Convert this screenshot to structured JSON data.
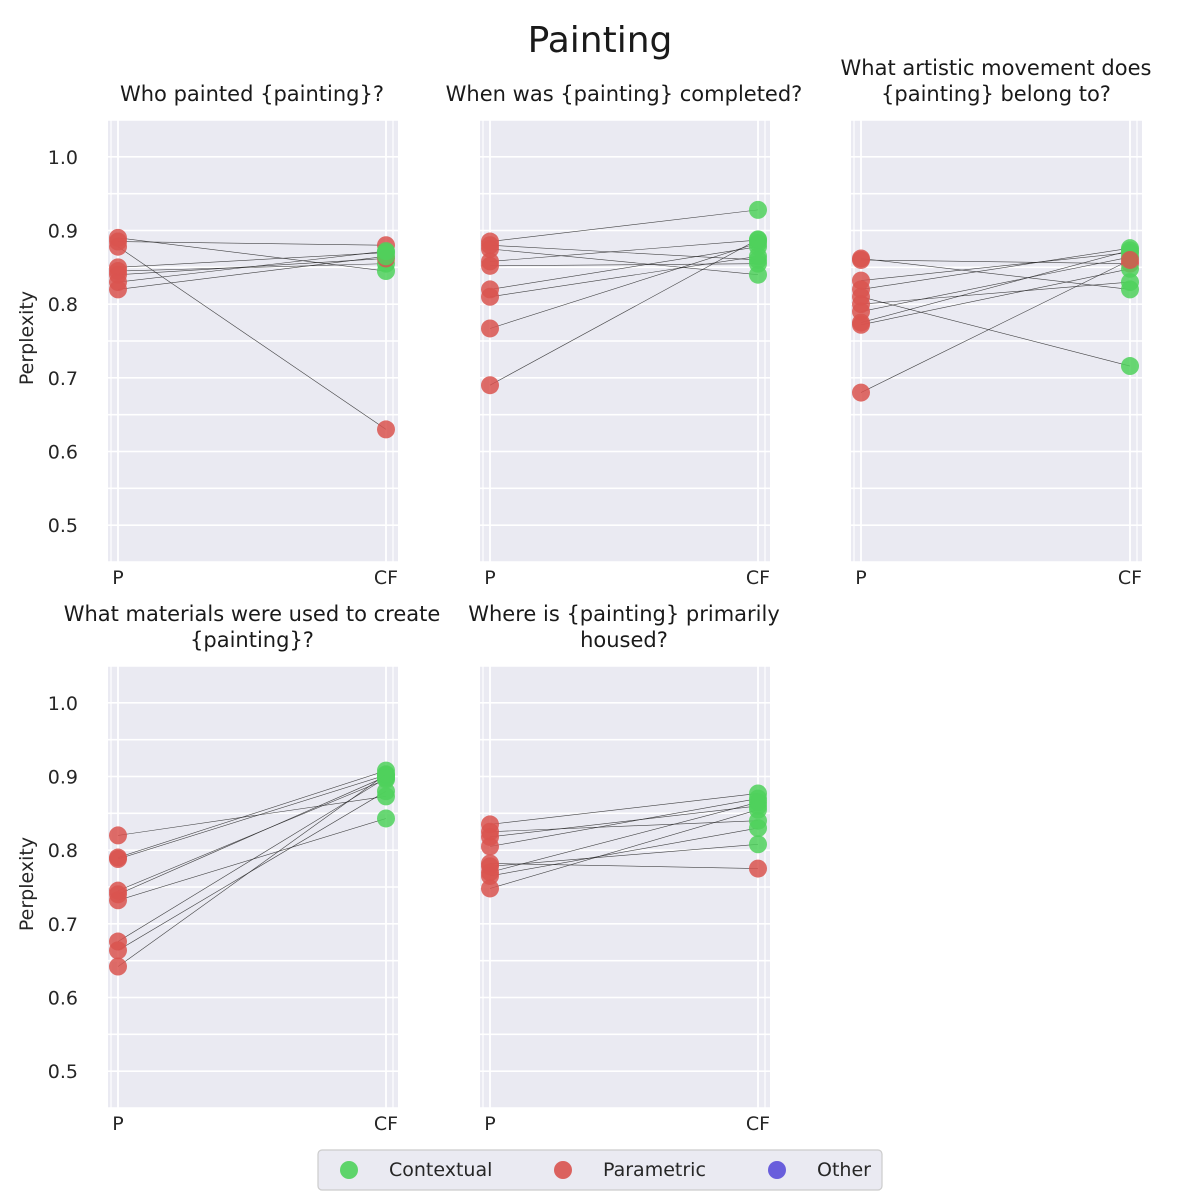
{
  "figure_title": "Painting",
  "colors": {
    "contextual": "#4fd15c",
    "parametric": "#d9534f",
    "other": "#5b4fd9",
    "panel_bg": "#eaeaf2",
    "grid": "#ffffff",
    "line": "#262626"
  },
  "legend": {
    "items": [
      {
        "label": "Contextual",
        "color_key": "contextual"
      },
      {
        "label": "Parametric",
        "color_key": "parametric"
      },
      {
        "label": "Other",
        "color_key": "other"
      }
    ]
  },
  "chart_data": [
    {
      "type": "scatter",
      "title": "Who painted {painting}?",
      "xlabel": "",
      "ylabel": "Perplexity",
      "categories": [
        "P",
        "CF"
      ],
      "yticks": [
        0.5,
        0.6,
        0.7,
        0.8,
        0.9,
        1.0
      ],
      "ylim": [
        0.45,
        1.05
      ],
      "grid": true,
      "pairs": [
        {
          "p": 0.89,
          "cf": 0.845,
          "cf_class": "contextual"
        },
        {
          "p": 0.885,
          "cf": 0.88,
          "cf_class": "parametric"
        },
        {
          "p": 0.878,
          "cf": 0.63,
          "cf_class": "parametric"
        },
        {
          "p": 0.85,
          "cf": 0.87,
          "cf_class": "contextual"
        },
        {
          "p": 0.845,
          "cf": 0.855,
          "cf_class": "contextual"
        },
        {
          "p": 0.84,
          "cf": 0.862,
          "cf_class": "parametric"
        },
        {
          "p": 0.83,
          "cf": 0.872,
          "cf_class": "contextual"
        },
        {
          "p": 0.82,
          "cf": 0.865,
          "cf_class": "contextual"
        }
      ]
    },
    {
      "type": "scatter",
      "title": "When was {painting} completed?",
      "xlabel": "",
      "ylabel": "",
      "categories": [
        "P",
        "CF"
      ],
      "yticks": [
        0.5,
        0.6,
        0.7,
        0.8,
        0.9,
        1.0
      ],
      "ylim": [
        0.45,
        1.05
      ],
      "grid": true,
      "pairs": [
        {
          "p": 0.885,
          "cf": 0.928,
          "cf_class": "contextual"
        },
        {
          "p": 0.88,
          "cf": 0.86,
          "cf_class": "contextual"
        },
        {
          "p": 0.875,
          "cf": 0.84,
          "cf_class": "contextual"
        },
        {
          "p": 0.858,
          "cf": 0.887,
          "cf_class": "contextual"
        },
        {
          "p": 0.852,
          "cf": 0.855,
          "cf_class": "contextual"
        },
        {
          "p": 0.82,
          "cf": 0.878,
          "cf_class": "contextual"
        },
        {
          "p": 0.81,
          "cf": 0.865,
          "cf_class": "contextual"
        },
        {
          "p": 0.767,
          "cf": 0.883,
          "cf_class": "contextual"
        },
        {
          "p": 0.69,
          "cf": 0.888,
          "cf_class": "contextual"
        }
      ]
    },
    {
      "type": "scatter",
      "title": "What artistic movement does {painting} belong to?",
      "xlabel": "",
      "ylabel": "",
      "categories": [
        "P",
        "CF"
      ],
      "yticks": [
        0.5,
        0.6,
        0.7,
        0.8,
        0.9,
        1.0
      ],
      "ylim": [
        0.45,
        1.05
      ],
      "grid": true,
      "pairs": [
        {
          "p": 0.862,
          "cf": 0.82,
          "cf_class": "contextual"
        },
        {
          "p": 0.86,
          "cf": 0.855,
          "cf_class": "parametric"
        },
        {
          "p": 0.832,
          "cf": 0.87,
          "cf_class": "contextual"
        },
        {
          "p": 0.82,
          "cf": 0.876,
          "cf_class": "contextual"
        },
        {
          "p": 0.81,
          "cf": 0.716,
          "cf_class": "contextual"
        },
        {
          "p": 0.8,
          "cf": 0.83,
          "cf_class": "contextual"
        },
        {
          "p": 0.79,
          "cf": 0.864,
          "cf_class": "contextual"
        },
        {
          "p": 0.775,
          "cf": 0.873,
          "cf_class": "contextual"
        },
        {
          "p": 0.772,
          "cf": 0.848,
          "cf_class": "contextual"
        },
        {
          "p": 0.68,
          "cf": 0.86,
          "cf_class": "parametric"
        }
      ]
    },
    {
      "type": "scatter",
      "title": "What materials were used to create {painting}?",
      "xlabel": "",
      "ylabel": "Perplexity",
      "categories": [
        "P",
        "CF"
      ],
      "yticks": [
        0.5,
        0.6,
        0.7,
        0.8,
        0.9,
        1.0
      ],
      "ylim": [
        0.45,
        1.05
      ],
      "grid": true,
      "pairs": [
        {
          "p": 0.82,
          "cf": 0.873,
          "cf_class": "contextual"
        },
        {
          "p": 0.79,
          "cf": 0.908,
          "cf_class": "contextual"
        },
        {
          "p": 0.788,
          "cf": 0.902,
          "cf_class": "contextual"
        },
        {
          "p": 0.745,
          "cf": 0.896,
          "cf_class": "contextual"
        },
        {
          "p": 0.74,
          "cf": 0.9,
          "cf_class": "contextual"
        },
        {
          "p": 0.732,
          "cf": 0.843,
          "cf_class": "contextual"
        },
        {
          "p": 0.676,
          "cf": 0.898,
          "cf_class": "contextual"
        },
        {
          "p": 0.664,
          "cf": 0.88,
          "cf_class": "contextual"
        },
        {
          "p": 0.642,
          "cf": 0.903,
          "cf_class": "contextual"
        }
      ]
    },
    {
      "type": "scatter",
      "title": "Where is {painting} primarily housed?",
      "xlabel": "",
      "ylabel": "",
      "categories": [
        "P",
        "CF"
      ],
      "yticks": [
        0.5,
        0.6,
        0.7,
        0.8,
        0.9,
        1.0
      ],
      "ylim": [
        0.45,
        1.05
      ],
      "grid": true,
      "pairs": [
        {
          "p": 0.835,
          "cf": 0.877,
          "cf_class": "contextual"
        },
        {
          "p": 0.825,
          "cf": 0.84,
          "cf_class": "contextual"
        },
        {
          "p": 0.818,
          "cf": 0.86,
          "cf_class": "contextual"
        },
        {
          "p": 0.805,
          "cf": 0.87,
          "cf_class": "contextual"
        },
        {
          "p": 0.782,
          "cf": 0.775,
          "cf_class": "parametric"
        },
        {
          "p": 0.778,
          "cf": 0.808,
          "cf_class": "contextual"
        },
        {
          "p": 0.77,
          "cf": 0.865,
          "cf_class": "contextual"
        },
        {
          "p": 0.765,
          "cf": 0.83,
          "cf_class": "contextual"
        },
        {
          "p": 0.748,
          "cf": 0.855,
          "cf_class": "contextual"
        }
      ]
    }
  ]
}
